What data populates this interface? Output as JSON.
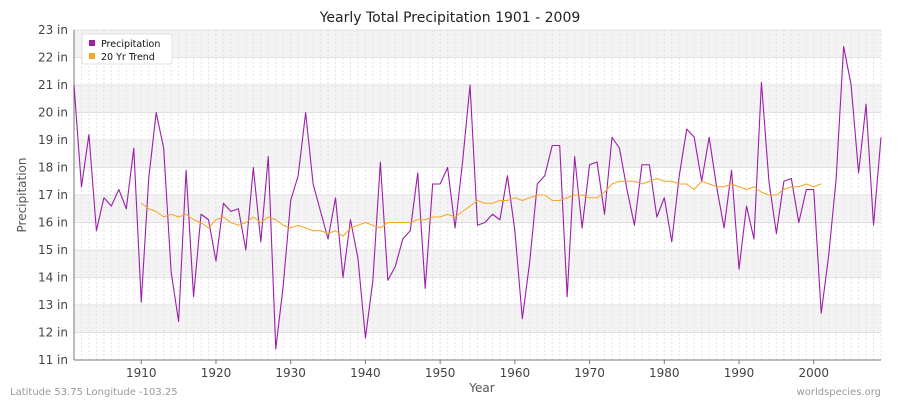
{
  "chart_data": {
    "type": "line",
    "title": "Yearly Total Precipitation 1901 - 2009",
    "xlabel": "Year",
    "ylabel": "Precipitation",
    "xlim": [
      1901,
      2009
    ],
    "ylim": [
      11,
      23
    ],
    "x_ticks": [
      1910,
      1920,
      1930,
      1940,
      1950,
      1960,
      1970,
      1980,
      1990,
      2000
    ],
    "y_ticks": [
      11,
      12,
      13,
      14,
      15,
      16,
      17,
      18,
      19,
      20,
      21,
      22,
      23
    ],
    "y_tick_labels": [
      "11 in",
      "12 in",
      "13 in",
      "14 in",
      "15 in",
      "16 in",
      "17 in",
      "18 in",
      "19 in",
      "20 in",
      "21 in",
      "22 in",
      "23 in"
    ],
    "grid": true,
    "legend_position": "top-left",
    "series": [
      {
        "name": "Precipitation",
        "color": "#9b1fa8",
        "x_start": 1901,
        "values": [
          21.0,
          17.3,
          19.2,
          15.7,
          16.9,
          16.6,
          17.2,
          16.5,
          18.7,
          13.1,
          17.6,
          20.0,
          18.7,
          14.2,
          12.4,
          17.9,
          13.3,
          16.3,
          16.1,
          14.6,
          16.7,
          16.4,
          16.5,
          15.0,
          18.0,
          15.3,
          18.4,
          11.4,
          13.7,
          16.8,
          17.7,
          20.0,
          17.4,
          16.4,
          15.4,
          16.9,
          14.0,
          16.1,
          14.7,
          11.8,
          13.9,
          18.2,
          13.9,
          14.4,
          15.4,
          15.7,
          17.8,
          13.6,
          17.4,
          17.4,
          18.0,
          15.8,
          18.2,
          21.0,
          15.9,
          16.0,
          16.3,
          16.1,
          17.7,
          15.7,
          12.5,
          14.6,
          17.4,
          17.7,
          18.8,
          18.8,
          13.3,
          18.4,
          15.8,
          18.1,
          18.2,
          16.3,
          19.1,
          18.7,
          17.2,
          15.9,
          18.1,
          18.1,
          16.2,
          16.9,
          15.3,
          17.7,
          19.4,
          19.1,
          17.5,
          19.1,
          17.3,
          15.8,
          17.9,
          14.3,
          16.6,
          15.4,
          21.1,
          17.5,
          15.6,
          17.5,
          17.6,
          16.0,
          17.2,
          17.2,
          12.7,
          14.8,
          17.6,
          22.4,
          21.0,
          17.8,
          20.3,
          15.9,
          19.1
        ]
      },
      {
        "name": "20 Yr Trend",
        "color": "#f5a623",
        "x_start": 1910,
        "values": [
          16.7,
          16.5,
          16.4,
          16.2,
          16.3,
          16.2,
          16.3,
          16.1,
          16.0,
          15.8,
          16.1,
          16.2,
          16.0,
          15.9,
          16.0,
          16.2,
          16.0,
          16.2,
          16.1,
          15.9,
          15.8,
          15.9,
          15.8,
          15.7,
          15.7,
          15.6,
          15.7,
          15.5,
          15.8,
          15.9,
          16.0,
          15.9,
          15.8,
          16.0,
          16.0,
          16.0,
          16.0,
          16.1,
          16.1,
          16.2,
          16.2,
          16.3,
          16.2,
          16.4,
          16.6,
          16.8,
          16.7,
          16.7,
          16.8,
          16.8,
          16.9,
          16.8,
          16.9,
          17.0,
          17.0,
          16.8,
          16.8,
          16.9,
          17.0,
          17.0,
          16.9,
          16.9,
          17.1,
          17.4,
          17.5,
          17.5,
          17.5,
          17.4,
          17.5,
          17.6,
          17.5,
          17.5,
          17.4,
          17.4,
          17.2,
          17.5,
          17.4,
          17.3,
          17.3,
          17.4,
          17.3,
          17.2,
          17.3,
          17.1,
          17.0,
          17.0,
          17.2,
          17.3,
          17.3,
          17.4,
          17.3,
          17.4
        ]
      }
    ]
  },
  "footer": {
    "left": "Latitude 53.75 Longitude -103.25",
    "right": "worldspecies.org"
  }
}
